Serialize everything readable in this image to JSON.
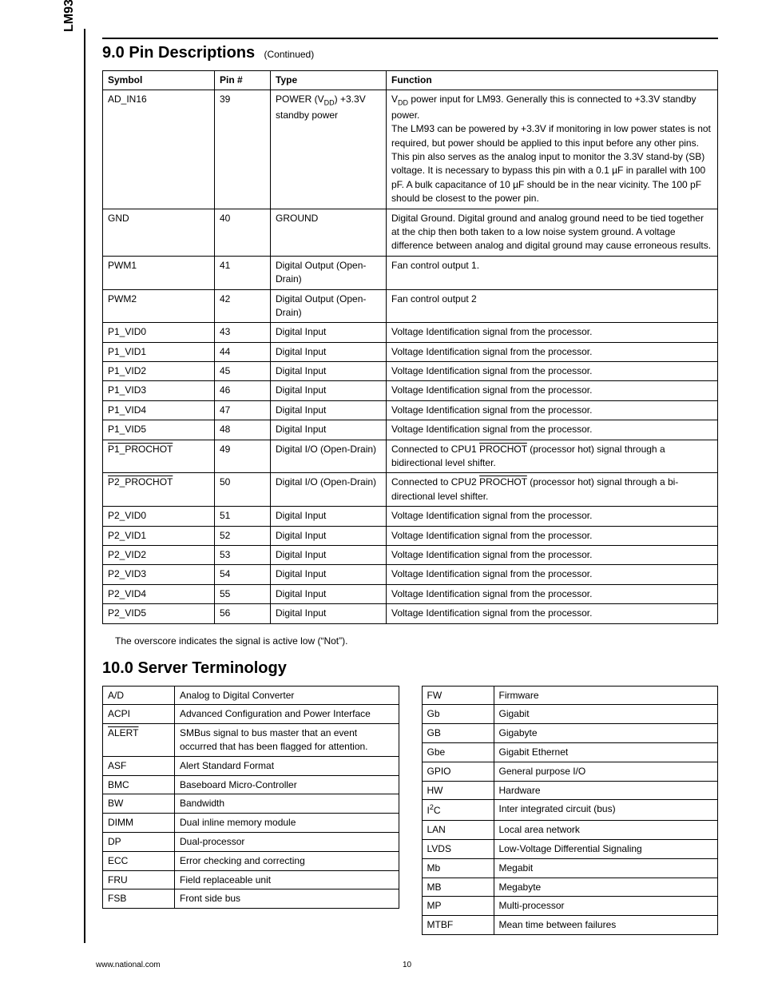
{
  "sideLabel": "LM93",
  "section9": {
    "title": "9.0 Pin Descriptions",
    "continued": "(Continued)",
    "headers": [
      "Symbol",
      "Pin #",
      "Type",
      "Function"
    ],
    "rows": [
      {
        "symbol_html": "AD_IN16",
        "pin": "39",
        "type_html": "POWER (V<span class='sub'>DD</span>) +3.3V standby power",
        "func_html": "V<span class='sub'>DD</span> power input for LM93. Generally this is connected to +3.3V standby power.<br>The LM93 can be powered by +3.3V if monitoring in low power states is not required, but power should be applied to this input before any other pins.<br>This pin also serves as the analog input to monitor the 3.3V stand-by (SB) voltage. It is necessary to bypass this pin with a 0.1 µF in parallel with 100 pF. A bulk capacitance of 10 µF should be in the near vicinity. The 100 pF should be closest to the power pin."
      },
      {
        "symbol_html": "GND",
        "pin": "40",
        "type_html": "GROUND",
        "func_html": "Digital Ground. Digital ground and analog ground need to be tied together at the chip then both taken to a low noise system ground. A voltage difference between analog and digital ground may cause erroneous results."
      },
      {
        "symbol_html": "PWM1",
        "pin": "41",
        "type_html": "Digital Output (Open-Drain)",
        "func_html": "Fan control output 1."
      },
      {
        "symbol_html": "PWM2",
        "pin": "42",
        "type_html": "Digital Output (Open-Drain)",
        "func_html": "Fan control output 2"
      },
      {
        "symbol_html": "P1_VID0",
        "pin": "43",
        "type_html": "Digital Input",
        "func_html": "Voltage Identification signal from the processor."
      },
      {
        "symbol_html": "P1_VID1",
        "pin": "44",
        "type_html": "Digital Input",
        "func_html": "Voltage Identification signal from the processor."
      },
      {
        "symbol_html": "P1_VID2",
        "pin": "45",
        "type_html": "Digital Input",
        "func_html": "Voltage Identification signal from the processor."
      },
      {
        "symbol_html": "P1_VID3",
        "pin": "46",
        "type_html": "Digital Input",
        "func_html": "Voltage Identification signal from the processor."
      },
      {
        "symbol_html": "P1_VID4",
        "pin": "47",
        "type_html": "Digital Input",
        "func_html": "Voltage Identification signal from the processor."
      },
      {
        "symbol_html": "P1_VID5",
        "pin": "48",
        "type_html": "Digital Input",
        "func_html": "Voltage Identification signal from the processor."
      },
      {
        "symbol_html": "<span class='overline'>P1_PROCHOT</span>",
        "pin": "49",
        "type_html": "Digital I/O (Open-Drain)",
        "func_html": "Connected to CPU1 <span class='overline'>PROCHOT</span> (processor hot) signal through a bidirectional level shifter."
      },
      {
        "symbol_html": "<span class='overline'>P2_PROCHOT</span>",
        "pin": "50",
        "type_html": "Digital I/O (Open-Drain)",
        "func_html": "Connected to CPU2 <span class='overline'>PROCHOT</span> (processor hot) signal through a bi-directional level shifter."
      },
      {
        "symbol_html": "P2_VID0",
        "pin": "51",
        "type_html": "Digital Input",
        "func_html": "Voltage Identification signal from the processor."
      },
      {
        "symbol_html": "P2_VID1",
        "pin": "52",
        "type_html": "Digital Input",
        "func_html": "Voltage Identification signal from the processor."
      },
      {
        "symbol_html": "P2_VID2",
        "pin": "53",
        "type_html": "Digital Input",
        "func_html": "Voltage Identification signal from the processor."
      },
      {
        "symbol_html": "P2_VID3",
        "pin": "54",
        "type_html": "Digital Input",
        "func_html": "Voltage Identification signal from the processor."
      },
      {
        "symbol_html": "P2_VID4",
        "pin": "55",
        "type_html": "Digital Input",
        "func_html": "Voltage Identification signal from the processor."
      },
      {
        "symbol_html": "P2_VID5",
        "pin": "56",
        "type_html": "Digital Input",
        "func_html": "Voltage Identification signal from the processor."
      }
    ],
    "note": "The overscore indicates the signal is active low (“Not”)."
  },
  "section10": {
    "title": "10.0 Server Terminology",
    "left": [
      {
        "term_html": "A/D",
        "def": "Analog to Digital Converter"
      },
      {
        "term_html": "ACPI",
        "def": "Advanced Configuration and Power Interface"
      },
      {
        "term_html": "<span class='overline'>ALERT</span>",
        "def": "SMBus signal to bus master that an event occurred that has been flagged for attention."
      },
      {
        "term_html": "ASF",
        "def": "Alert Standard Format"
      },
      {
        "term_html": "BMC",
        "def": "Baseboard Micro-Controller"
      },
      {
        "term_html": "BW",
        "def": "Bandwidth"
      },
      {
        "term_html": "DIMM",
        "def": "Dual inline memory module"
      },
      {
        "term_html": "DP",
        "def": "Dual-processor"
      },
      {
        "term_html": "ECC",
        "def": "Error checking and correcting"
      },
      {
        "term_html": "FRU",
        "def": "Field replaceable unit"
      },
      {
        "term_html": "FSB",
        "def": "Front side bus"
      }
    ],
    "right": [
      {
        "term_html": "FW",
        "def": "Firmware"
      },
      {
        "term_html": "Gb",
        "def": "Gigabit"
      },
      {
        "term_html": "GB",
        "def": "Gigabyte"
      },
      {
        "term_html": "Gbe",
        "def": "Gigabit Ethernet"
      },
      {
        "term_html": "GPIO",
        "def": "General purpose I/O"
      },
      {
        "term_html": "HW",
        "def": "Hardware"
      },
      {
        "term_html": "I<span class='sup'>2</span>C",
        "def": "Inter integrated circuit (bus)"
      },
      {
        "term_html": "LAN",
        "def": "Local area network"
      },
      {
        "term_html": "LVDS",
        "def": "Low-Voltage Differential Signaling"
      },
      {
        "term_html": "Mb",
        "def": "Megabit"
      },
      {
        "term_html": "MB",
        "def": "Megabyte"
      },
      {
        "term_html": "MP",
        "def": "Multi-processor"
      },
      {
        "term_html": "MTBF",
        "def": "Mean time between failures"
      }
    ]
  },
  "footer": {
    "url": "www.national.com",
    "page": "10"
  }
}
